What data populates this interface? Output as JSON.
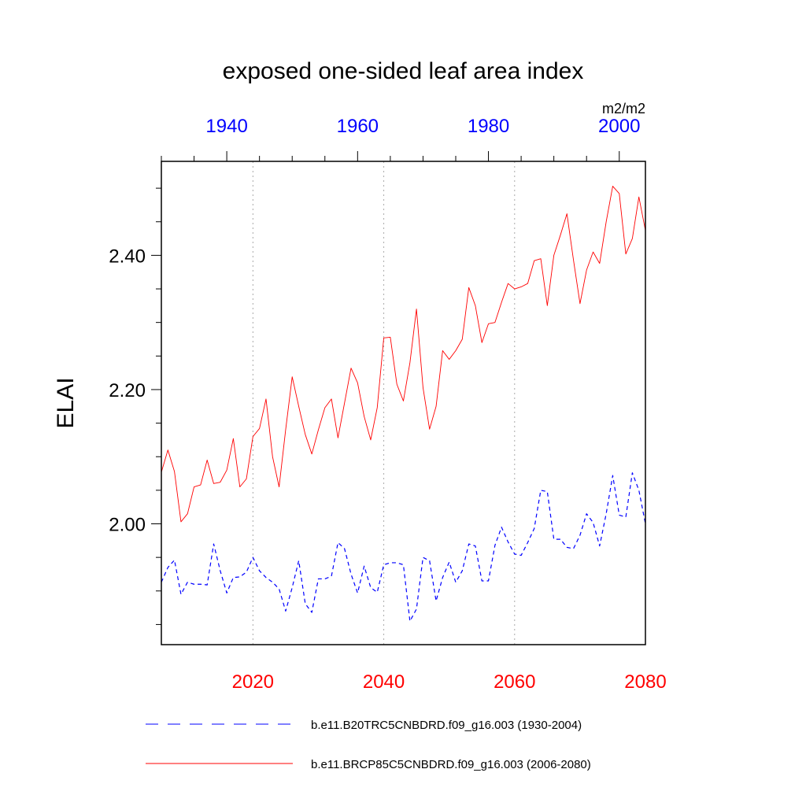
{
  "chart_data": {
    "type": "line",
    "title": "exposed one-sided leaf area index",
    "units": "m2/m2",
    "ylabel": "ELAI",
    "ylim": [
      1.82,
      2.54
    ],
    "y_ticks": [
      {
        "value": 2.0,
        "label": "2.00"
      },
      {
        "value": 2.2,
        "label": "2.20"
      },
      {
        "value": 2.4,
        "label": "2.40"
      }
    ],
    "top_axis": {
      "range": [
        1930,
        2004
      ],
      "ticks": [
        {
          "value": 1940,
          "label": "1940"
        },
        {
          "value": 1960,
          "label": "1960"
        },
        {
          "value": 1980,
          "label": "1980"
        },
        {
          "value": 2000,
          "label": "2000"
        }
      ],
      "color": "#0000ff"
    },
    "bottom_axis": {
      "range": [
        2006,
        2080
      ],
      "ticks": [
        {
          "value": 2020,
          "label": "2020"
        },
        {
          "value": 2040,
          "label": "2040"
        },
        {
          "value": 2060,
          "label": "2060"
        },
        {
          "value": 2080,
          "label": "2080"
        }
      ],
      "color": "#ff0000"
    },
    "grid": "vertical-dotted",
    "legend_position": "bottom",
    "series": [
      {
        "name": "b.e11.B20TRC5CNBDRD.f09_g16.003 (1930-2004)",
        "axis": "top",
        "color": "#0000ff",
        "style": "dashed",
        "x_start": 1930,
        "x_step": 1,
        "values": [
          1.913,
          1.935,
          1.946,
          1.895,
          1.913,
          1.91,
          1.91,
          1.909,
          1.97,
          1.93,
          1.897,
          1.92,
          1.921,
          1.928,
          1.95,
          1.93,
          1.92,
          1.913,
          1.903,
          1.87,
          1.905,
          1.945,
          1.881,
          1.868,
          1.918,
          1.918,
          1.922,
          1.972,
          1.963,
          1.925,
          1.897,
          1.937,
          1.905,
          1.898,
          1.939,
          1.942,
          1.942,
          1.939,
          1.855,
          1.873,
          1.95,
          1.945,
          1.885,
          1.92,
          1.943,
          1.913,
          1.93,
          1.97,
          1.967,
          1.915,
          1.915,
          1.968,
          1.995,
          1.973,
          1.955,
          1.953,
          1.972,
          1.993,
          2.05,
          2.048,
          1.977,
          1.977,
          1.965,
          1.963,
          1.983,
          2.015,
          2.002,
          1.967,
          2.015,
          2.072,
          2.013,
          2.01,
          2.076,
          2.05,
          2.0
        ]
      },
      {
        "name": "b.e11.BRCP85C5CNBDRD.f09_g16.003 (2006-2080)",
        "axis": "bottom",
        "color": "#ff0000",
        "style": "solid",
        "x_start": 2006,
        "x_step": 1,
        "values": [
          2.077,
          2.11,
          2.078,
          2.003,
          2.015,
          2.055,
          2.058,
          2.095,
          2.06,
          2.062,
          2.08,
          2.127,
          2.055,
          2.067,
          2.13,
          2.142,
          2.186,
          2.1,
          2.055,
          2.14,
          2.219,
          2.175,
          2.133,
          2.104,
          2.14,
          2.173,
          2.186,
          2.128,
          2.18,
          2.232,
          2.21,
          2.16,
          2.125,
          2.173,
          2.277,
          2.278,
          2.208,
          2.183,
          2.24,
          2.32,
          2.203,
          2.141,
          2.175,
          2.258,
          2.245,
          2.258,
          2.275,
          2.352,
          2.325,
          2.27,
          2.298,
          2.3,
          2.33,
          2.358,
          2.35,
          2.353,
          2.358,
          2.392,
          2.395,
          2.325,
          2.4,
          2.43,
          2.462,
          2.393,
          2.328,
          2.378,
          2.405,
          2.388,
          2.45,
          2.503,
          2.492,
          2.402,
          2.425,
          2.487,
          2.437
        ]
      }
    ]
  }
}
